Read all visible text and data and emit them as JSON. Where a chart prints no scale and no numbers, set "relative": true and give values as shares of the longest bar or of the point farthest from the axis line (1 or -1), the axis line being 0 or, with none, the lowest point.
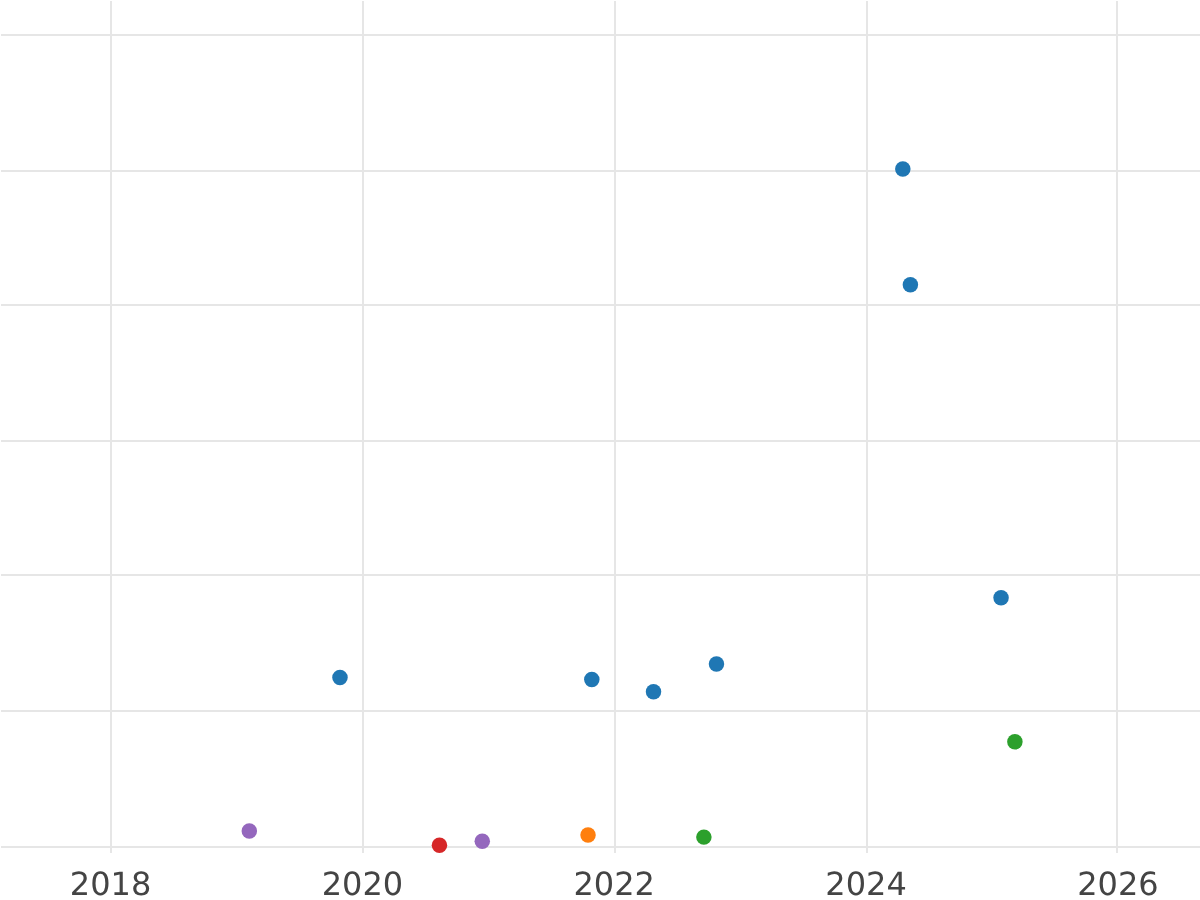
{
  "chart_data": {
    "type": "scatter",
    "relative": true,
    "grid": true,
    "marker": "circle",
    "legend": false,
    "xlim": [
      2017.13,
      2026.66
    ],
    "xticks": [
      2018,
      2020,
      2022,
      2024,
      2026
    ],
    "series": [
      {
        "color": "#1f77b4",
        "x": [
          2019.83,
          2021.83,
          2022.32,
          2022.82,
          2024.3,
          2024.36,
          2025.08
        ],
        "values": [
          0.248,
          0.245,
          0.227,
          0.268,
          1,
          0.829,
          0.366
        ]
      },
      {
        "color": "#9467bd",
        "x": [
          2019.11,
          2020.96
        ],
        "values": [
          0.021,
          0.006
        ]
      },
      {
        "color": "#d62728",
        "x": [
          2020.62
        ],
        "values": [
          0
        ]
      },
      {
        "color": "#ff7f0e",
        "x": [
          2021.8
        ],
        "values": [
          0.015
        ]
      },
      {
        "color": "#2ca02c",
        "x": [
          2022.72,
          2025.19
        ],
        "values": [
          0.012,
          0.153
        ]
      }
    ]
  }
}
